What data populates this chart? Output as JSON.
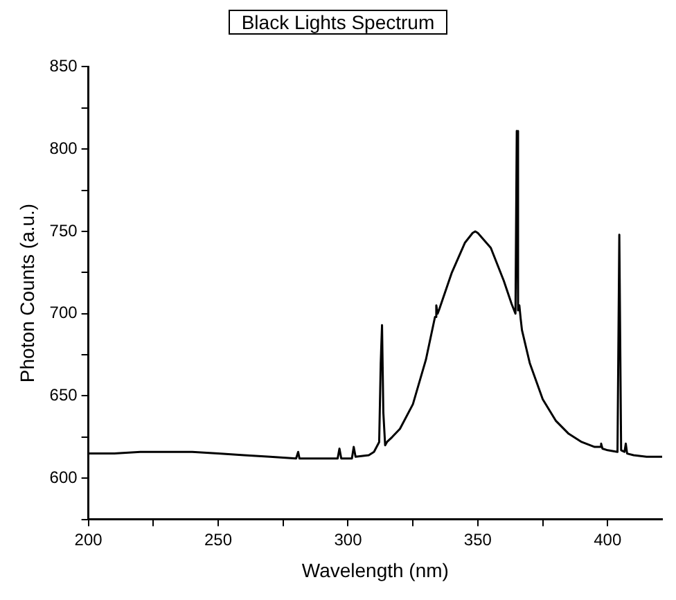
{
  "chart_data": {
    "type": "line",
    "title": "Black Lights Spectrum",
    "xlabel": "Wavelength (nm)",
    "ylabel": "Photon Counts (a.u.)",
    "x": [
      200,
      210,
      220,
      230,
      240,
      250,
      260,
      270,
      280,
      280.8,
      281.3,
      281.8,
      290,
      296,
      296.7,
      297.4,
      301.5,
      302.2,
      302.9,
      308,
      310,
      312,
      312.6,
      313.1,
      313.6,
      314.3,
      315,
      317,
      320,
      325,
      330,
      333.5,
      334,
      334.5,
      335,
      340,
      345,
      348,
      349,
      350,
      355,
      360,
      363,
      364.5,
      365,
      365.5,
      366,
      366.5,
      367,
      370,
      375,
      380,
      385,
      390,
      395,
      397,
      397.5,
      398,
      400,
      403.8,
      404.5,
      405.2,
      406.5,
      407,
      407.5,
      410,
      415,
      421
    ],
    "series": [
      {
        "color": "#000000",
        "values": [
          615,
          615,
          616,
          616,
          616,
          615,
          614,
          613,
          612,
          616,
          612,
          612,
          612,
          612,
          618,
          612,
          612,
          619,
          613,
          614,
          616,
          622,
          670,
          693,
          640,
          620,
          622,
          625,
          630,
          645,
          672,
          698,
          705,
          700,
          702,
          725,
          743,
          749,
          750,
          749,
          740,
          720,
          706,
          700,
          811,
          702,
          705,
          697,
          690,
          670,
          648,
          635,
          627,
          622,
          619,
          619,
          621,
          618,
          617,
          616,
          748,
          617,
          616,
          621,
          615,
          614,
          613,
          613
        ]
      }
    ],
    "xlim": [
      200,
      421
    ],
    "xticks": [
      200,
      {
        "value": 225,
        "label": null
      },
      250,
      {
        "value": 275,
        "label": null
      },
      300,
      {
        "value": 325,
        "label": null
      },
      350,
      {
        "value": 375,
        "label": null
      },
      400
    ],
    "ylim": [
      575,
      850
    ],
    "yticks": [
      {
        "value": 575,
        "label": null
      },
      600,
      {
        "value": 625,
        "label": null
      },
      650,
      {
        "value": 675,
        "label": null
      },
      700,
      {
        "value": 725,
        "label": null
      },
      750,
      {
        "value": 775,
        "label": null
      },
      800,
      {
        "value": 825,
        "label": null
      },
      850
    ],
    "grid": false,
    "legend": false,
    "marker": "none",
    "line_style": "solid"
  }
}
